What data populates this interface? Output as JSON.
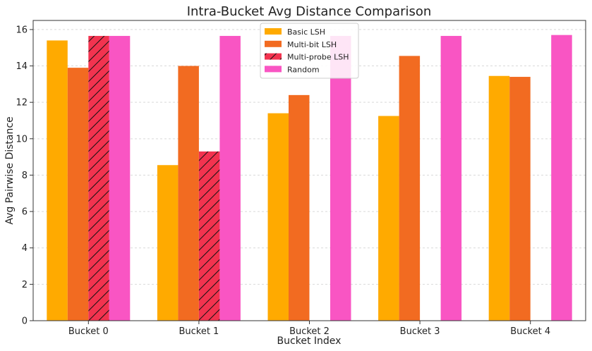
{
  "chart_data": {
    "type": "bar",
    "title": "Intra-Bucket Avg Distance Comparison",
    "xlabel": "Bucket Index",
    "ylabel": "Avg Pairwise Distance",
    "categories": [
      "Bucket 0",
      "Bucket 1",
      "Bucket 2",
      "Bucket 3",
      "Bucket 4"
    ],
    "ylim": [
      0,
      16.5
    ],
    "yticks": [
      0,
      2,
      4,
      6,
      8,
      10,
      12,
      14,
      16
    ],
    "grid": true,
    "legend_position": "top-center",
    "series": [
      {
        "name": "Basic LSH",
        "color": "#FFAA00",
        "hatch": false,
        "values": [
          15.4,
          8.55,
          11.4,
          11.25,
          13.45
        ]
      },
      {
        "name": "Multi-bit LSH",
        "color": "#F26B21",
        "hatch": false,
        "values": [
          13.9,
          14.0,
          12.4,
          14.55,
          13.4
        ]
      },
      {
        "name": "Multi-probe LSH",
        "color": "#F2334F",
        "hatch": true,
        "values": [
          15.65,
          9.3,
          null,
          null,
          null
        ]
      },
      {
        "name": "Random",
        "color": "#F955C3",
        "hatch": false,
        "values": [
          15.65,
          15.65,
          15.65,
          15.65,
          15.7
        ]
      }
    ]
  }
}
